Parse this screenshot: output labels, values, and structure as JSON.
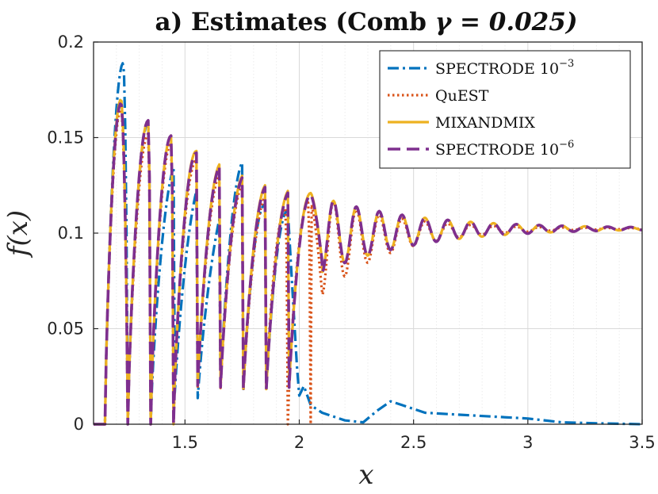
{
  "chart_data": {
    "type": "line",
    "title_prefix": "a) Estimates (Comb",
    "title_gamma": "γ = 0.025)",
    "xlabel": "x",
    "ylabel": "f(x)",
    "xlim": [
      1.1,
      3.5
    ],
    "ylim": [
      0,
      0.2
    ],
    "x_ticks": [
      1.5,
      2,
      2.5,
      3,
      3.5
    ],
    "x_tick_labels": [
      "1.5",
      "2",
      "2.5",
      "3",
      "3.5"
    ],
    "y_ticks": [
      0,
      0.05,
      0.1,
      0.15,
      0.2
    ],
    "y_tick_labels": [
      "0",
      "0.05",
      "0.1",
      "0.15",
      "0.2"
    ],
    "grid": true,
    "legend_position": "top-right",
    "comb_centers": [
      1.2,
      1.3,
      1.4,
      1.5,
      1.6,
      1.7,
      1.8,
      1.9,
      2.0
    ],
    "series": [
      {
        "name": "SPECTRODE 10^-3",
        "legend_base": "SPECTRODE 10",
        "legend_sup": "−3",
        "color": "#0072BD",
        "style": "dashdot",
        "peaks": [
          [
            1.23,
            0.189
          ],
          [
            1.34,
            0.158
          ],
          [
            1.47,
            0.138
          ],
          [
            1.59,
            0.132
          ],
          [
            1.72,
            0.127
          ],
          [
            1.76,
            0.138
          ],
          [
            1.95,
            0.112
          ]
        ],
        "tail": [
          [
            2.0,
            0.015
          ],
          [
            2.02,
            0.02
          ],
          [
            2.05,
            0.01
          ],
          [
            2.1,
            0.006
          ],
          [
            2.2,
            0.002
          ],
          [
            2.28,
            0.001
          ],
          [
            2.34,
            0.007
          ],
          [
            2.4,
            0.012
          ],
          [
            2.45,
            0.01
          ],
          [
            2.55,
            0.006
          ],
          [
            2.7,
            0.005
          ],
          [
            2.85,
            0.004
          ],
          [
            3.0,
            0.003
          ],
          [
            3.15,
            0.001
          ],
          [
            3.3,
            0.0005
          ],
          [
            3.5,
            0.0
          ]
        ]
      },
      {
        "name": "QuEST",
        "legend_base": "QuEST",
        "legend_sup": "",
        "color": "#D95319",
        "style": "dotted",
        "peaks": [
          [
            1.22,
            0.165
          ],
          [
            1.34,
            0.152
          ],
          [
            1.44,
            0.147
          ],
          [
            1.55,
            0.138
          ],
          [
            1.66,
            0.132
          ],
          [
            1.76,
            0.127
          ],
          [
            1.86,
            0.12
          ],
          [
            1.94,
            0.113
          ],
          [
            2.04,
            0.116
          ]
        ]
      },
      {
        "name": "MIXANDMIX",
        "legend_base": "MIXANDMIX",
        "legend_sup": "",
        "color": "#EDB120",
        "style": "solid",
        "peaks": [
          [
            1.22,
            0.17
          ],
          [
            1.34,
            0.159
          ],
          [
            1.44,
            0.151
          ],
          [
            1.55,
            0.143
          ],
          [
            1.66,
            0.137
          ],
          [
            1.76,
            0.131
          ],
          [
            1.86,
            0.126
          ],
          [
            1.96,
            0.123
          ],
          [
            2.05,
            0.121
          ]
        ]
      },
      {
        "name": "SPECTRODE 10^-6",
        "legend_base": "SPECTRODE 10",
        "legend_sup": "−6",
        "color": "#7E2F8E",
        "style": "dashed",
        "peaks": [
          [
            1.22,
            0.168
          ],
          [
            1.34,
            0.159
          ],
          [
            1.44,
            0.151
          ],
          [
            1.55,
            0.142
          ],
          [
            1.66,
            0.136
          ],
          [
            1.76,
            0.13
          ],
          [
            1.86,
            0.125
          ],
          [
            1.96,
            0.122
          ],
          [
            2.05,
            0.12
          ]
        ]
      }
    ]
  }
}
